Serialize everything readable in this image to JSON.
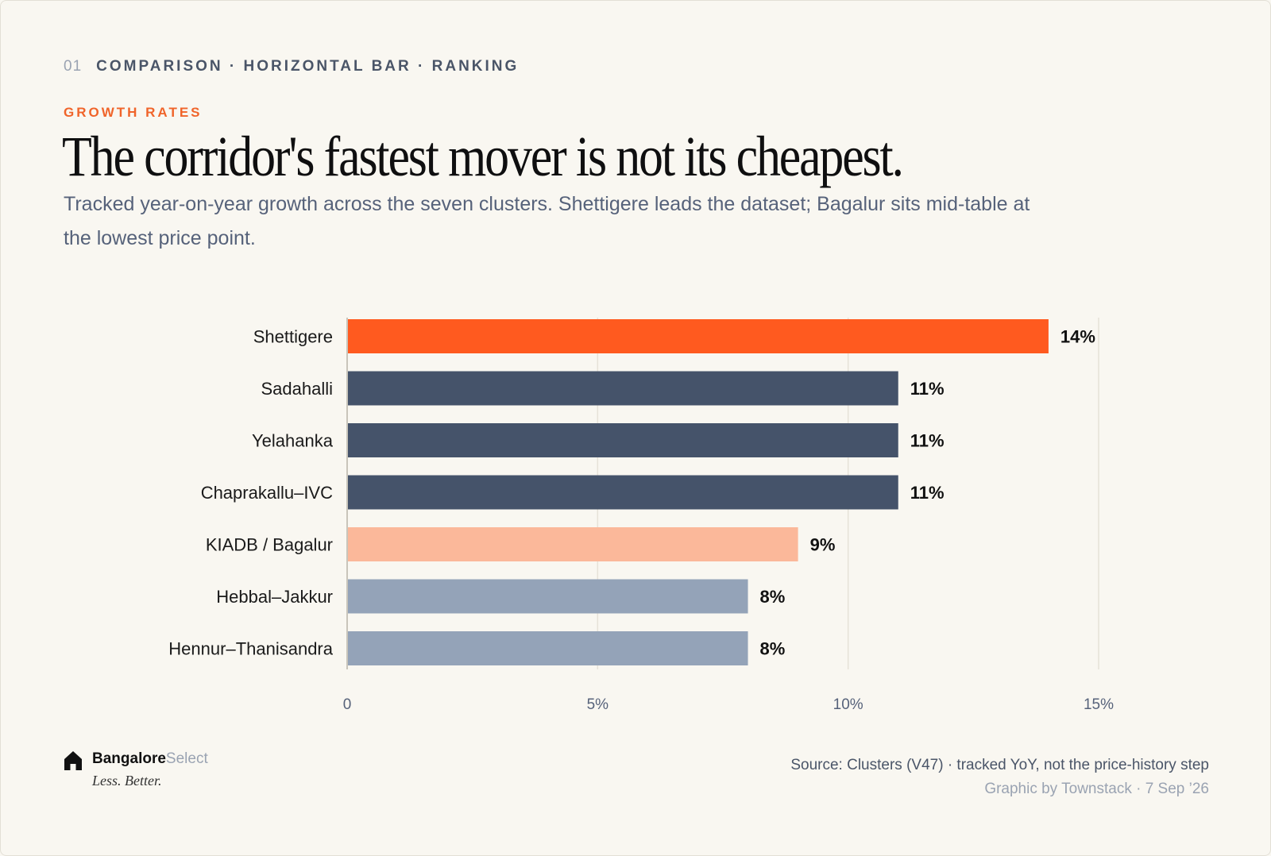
{
  "header": {
    "index": "01",
    "kicker": "COMPARISON · HORIZONTAL BAR · RANKING",
    "eyebrow": "GROWTH RATES",
    "title": "The corridor's fastest mover is not its cheapest.",
    "subtitle": "Tracked year-on-year growth across the seven clusters. Shettigere leads the dataset; Bagalur sits mid-table at the lowest price point."
  },
  "chart_data": {
    "type": "bar",
    "orientation": "horizontal",
    "categories": [
      "Shettigere",
      "Sadahalli",
      "Yelahanka",
      "Chaprakallu–IVC",
      "KIADB / Bagalur",
      "Hebbal–Jakkur",
      "Hennur–Thanisandra"
    ],
    "values": [
      14,
      11,
      11,
      11,
      9,
      8,
      8
    ],
    "value_labels": [
      "14%",
      "11%",
      "11%",
      "11%",
      "9%",
      "8%",
      "8%"
    ],
    "bar_colors": [
      "#ff5a1f",
      "#45536a",
      "#45536a",
      "#45536a",
      "#fbb89a",
      "#94a3b8",
      "#94a3b8"
    ],
    "xlim": [
      0,
      15
    ],
    "xticks": [
      0,
      5,
      10,
      15
    ],
    "xtick_labels": [
      "0",
      "5%",
      "10%",
      "15%"
    ],
    "grid": true,
    "legend": false,
    "xlabel": "",
    "ylabel": ""
  },
  "brand": {
    "name_bold": "Bangalore",
    "name_light": "Select",
    "tagline": "Less. Better.",
    "logo_icon": "house-icon"
  },
  "footer": {
    "source": "Source: Clusters (V47) · tracked YoY, not the price-history step",
    "credit": "Graphic by Townstack · 7 Sep ’26"
  }
}
